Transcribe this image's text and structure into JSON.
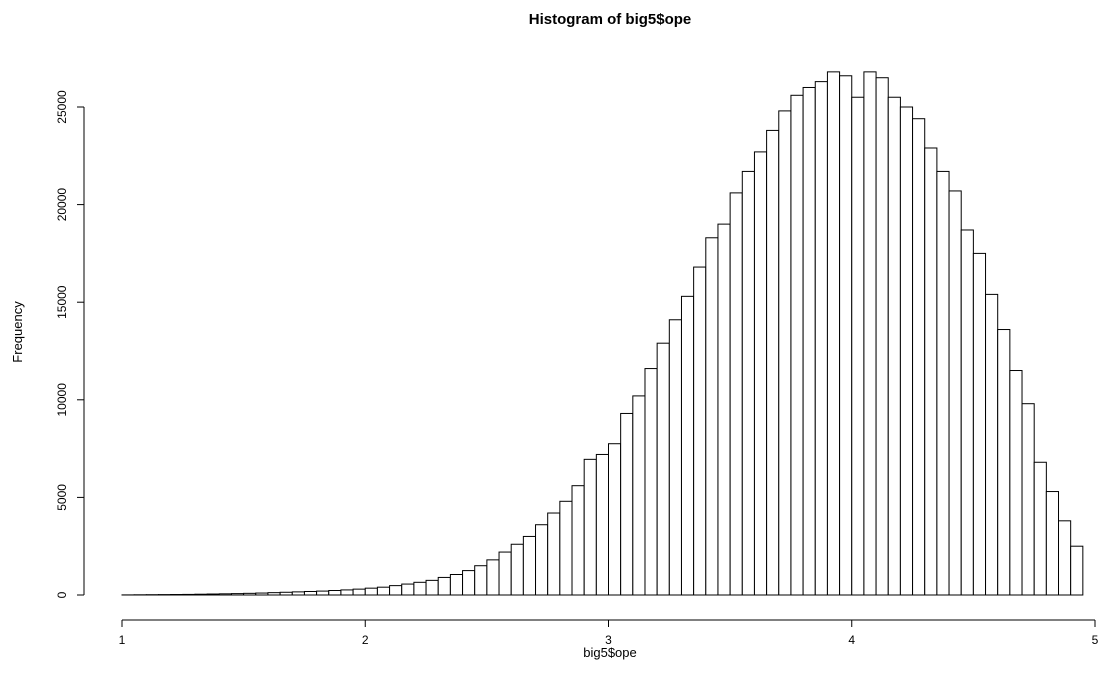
{
  "chart_data": {
    "type": "bar",
    "subtype": "histogram",
    "title": "Histogram of big5$ope",
    "xlabel": "big5$ope",
    "ylabel": "Frequency",
    "xlim": [
      1,
      5
    ],
    "ylim": [
      0,
      28000
    ],
    "bin_width": 0.05,
    "bin_start": 1.0,
    "x_ticks": [
      1,
      2,
      3,
      4,
      5
    ],
    "y_ticks": [
      0,
      5000,
      10000,
      15000,
      20000,
      25000
    ],
    "grid": false,
    "legend": "none",
    "bar_fill": "#ffffff",
    "bar_stroke": "#000000",
    "values": [
      5,
      10,
      15,
      20,
      25,
      30,
      40,
      50,
      60,
      70,
      85,
      100,
      120,
      140,
      160,
      180,
      200,
      230,
      260,
      300,
      350,
      400,
      480,
      560,
      650,
      750,
      900,
      1050,
      1250,
      1500,
      1800,
      2200,
      2600,
      3000,
      3600,
      4200,
      4800,
      5600,
      6950,
      7200,
      7750,
      9300,
      10200,
      11600,
      12900,
      14100,
      15300,
      16800,
      18300,
      19000,
      20600,
      21700,
      22700,
      23800,
      24800,
      25600,
      26000,
      26300,
      26800,
      26600,
      25500,
      26800,
      26500,
      25500,
      25000,
      24400,
      22900,
      21700,
      20700,
      18700,
      17500,
      15400,
      13600,
      11500,
      9800,
      6800,
      5300,
      3800,
      2500
    ]
  }
}
